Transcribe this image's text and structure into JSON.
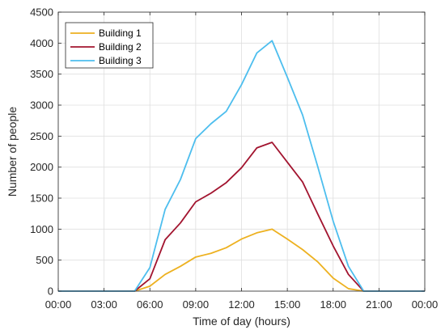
{
  "chart_data": {
    "type": "line",
    "xlabel": "Time of day (hours)",
    "ylabel": "Number of people",
    "xlim": [
      0,
      24
    ],
    "ylim": [
      0,
      4500
    ],
    "x_ticks": [
      {
        "value": 0,
        "label": "00:00"
      },
      {
        "value": 3,
        "label": "03:00"
      },
      {
        "value": 6,
        "label": "06:00"
      },
      {
        "value": 9,
        "label": "09:00"
      },
      {
        "value": 12,
        "label": "12:00"
      },
      {
        "value": 15,
        "label": "15:00"
      },
      {
        "value": 18,
        "label": "18:00"
      },
      {
        "value": 21,
        "label": "21:00"
      },
      {
        "value": 24,
        "label": "00:00"
      }
    ],
    "y_ticks": [
      {
        "value": 0,
        "label": "0"
      },
      {
        "value": 500,
        "label": "500"
      },
      {
        "value": 1000,
        "label": "1000"
      },
      {
        "value": 1500,
        "label": "1500"
      },
      {
        "value": 2000,
        "label": "2000"
      },
      {
        "value": 2500,
        "label": "2500"
      },
      {
        "value": 3000,
        "label": "3000"
      },
      {
        "value": 3500,
        "label": "3500"
      },
      {
        "value": 4000,
        "label": "4000"
      },
      {
        "value": 4500,
        "label": "4500"
      }
    ],
    "grid": true,
    "legend_position": "top-left",
    "x": [
      0,
      1,
      2,
      3,
      4,
      5,
      6,
      7,
      8,
      9,
      10,
      11,
      12,
      13,
      14,
      15,
      16,
      17,
      18,
      19,
      20,
      21,
      22,
      23,
      24
    ],
    "series": [
      {
        "name": "Building 1",
        "color": "#EDB120",
        "values": [
          0,
          0,
          0,
          0,
          0,
          0,
          80,
          270,
          400,
          550,
          610,
          700,
          840,
          940,
          1000,
          840,
          670,
          470,
          210,
          40,
          0,
          0,
          0,
          0,
          0
        ]
      },
      {
        "name": "Building 2",
        "color": "#A2142F",
        "values": [
          0,
          0,
          0,
          0,
          0,
          0,
          200,
          830,
          1100,
          1440,
          1580,
          1750,
          1990,
          2310,
          2400,
          2080,
          1760,
          1240,
          730,
          270,
          0,
          0,
          0,
          0,
          0
        ]
      },
      {
        "name": "Building 3",
        "color": "#4DBEEE",
        "values": [
          0,
          0,
          0,
          0,
          0,
          0,
          380,
          1320,
          1800,
          2460,
          2700,
          2900,
          3330,
          3840,
          4040,
          3450,
          2840,
          2000,
          1130,
          400,
          0,
          0,
          0,
          0,
          0
        ]
      }
    ]
  }
}
